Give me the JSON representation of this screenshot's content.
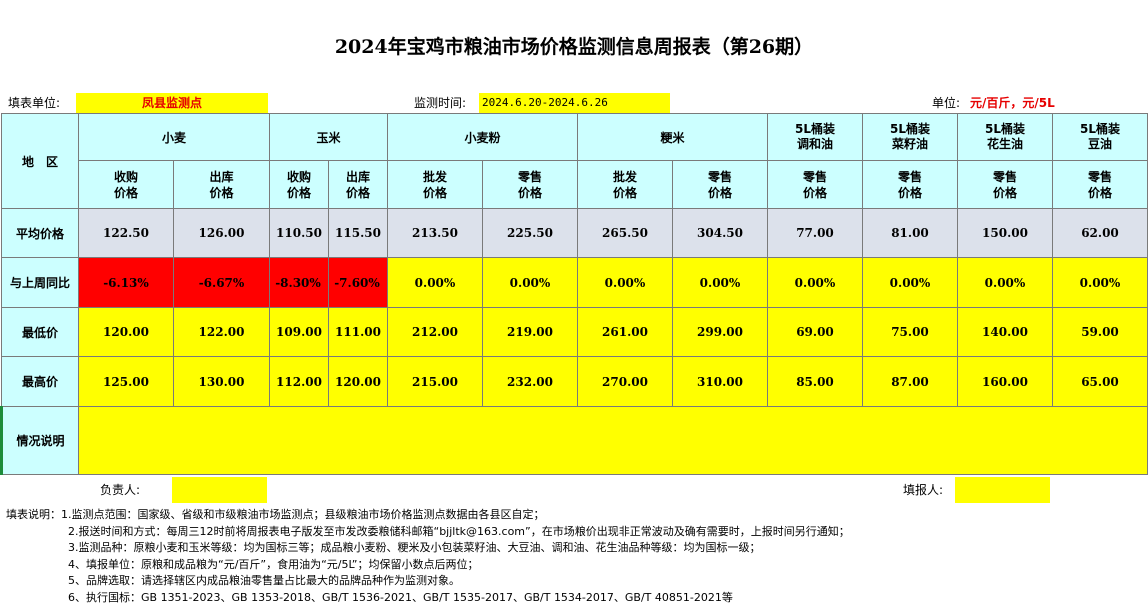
{
  "title": "2024年宝鸡市粮油市场价格监测信息周报表（第26期）",
  "info": {
    "unit_label": "填表单位:",
    "unit_value": "凤县监测点",
    "period_label": "监测时间:",
    "period_value": "2024.6.20-2024.6.26",
    "price_unit_label": "单位:",
    "price_unit_value": "元/百斤，元/5L"
  },
  "table": {
    "region_header": "地　区",
    "groups": [
      "小麦",
      "玉米",
      "小麦粉",
      "粳米",
      "5L桶装\n调和油",
      "5L桶装\n菜籽油",
      "5L桶装\n花生油",
      "5L桶装\n豆油"
    ],
    "subcols": [
      "收购\n价格",
      "出库\n价格",
      "收购\n价格",
      "出库\n价格",
      "批发\n价格",
      "零售\n价格",
      "批发\n价格",
      "零售\n价格",
      "零售\n价格",
      "零售\n价格",
      "零售\n价格",
      "零售\n价格"
    ],
    "rows": {
      "avg_label": "平均价格",
      "avg": [
        "122.50",
        "126.00",
        "110.50",
        "115.50",
        "213.50",
        "225.50",
        "265.50",
        "304.50",
        "77.00",
        "81.00",
        "150.00",
        "62.00"
      ],
      "change_label": "与上周同比",
      "change": [
        "-6.13%",
        "-6.67%",
        "-8.30%",
        "-7.60%",
        "0.00%",
        "0.00%",
        "0.00%",
        "0.00%",
        "0.00%",
        "0.00%",
        "0.00%",
        "0.00%"
      ],
      "min_label": "最低价",
      "min": [
        "120.00",
        "122.00",
        "109.00",
        "111.00",
        "212.00",
        "219.00",
        "261.00",
        "299.00",
        "69.00",
        "75.00",
        "140.00",
        "59.00"
      ],
      "max_label": "最高价",
      "max": [
        "125.00",
        "130.00",
        "112.00",
        "120.00",
        "215.00",
        "232.00",
        "270.00",
        "310.00",
        "85.00",
        "87.00",
        "160.00",
        "65.00"
      ],
      "note_label": "情况说明",
      "note_value": ""
    }
  },
  "signatures": {
    "manager_label": "负责人:",
    "manager_value": "",
    "reporter_label": "填报人:",
    "reporter_value": ""
  },
  "notes": [
    "填表说明：1.监测点范围：国家级、省级和市级粮油市场监测点；县级粮油市场价格监测点数据由各县区自定；",
    "2.报送时间和方式：每周三12时前将周报表电子版发至市发改委粮储科邮箱“bjjltk@163.com”，在市场粮价出现非正常波动及确有需要时，上报时间另行通知；",
    "3.监测品种：原粮小麦和玉米等级：均为国标三等；成品粮小麦粉、粳米及小包装菜籽油、大豆油、调和油、花生油品种等级：均为国标一级；",
    "4、填报单位：原粮和成品粮为“元/百斤”，食用油为“元/5L”；均保留小数点后两位；",
    "5、品牌选取：请选择辖区内成品粮油零售量占比最大的品牌品种作为监测对象。",
    "6、执行国标：GB 1351-2023、GB 1353-2018、GB/T 1536-2021、GB/T 1535-2017、GB/T 1534-2017、GB/T 40851-2021等"
  ]
}
